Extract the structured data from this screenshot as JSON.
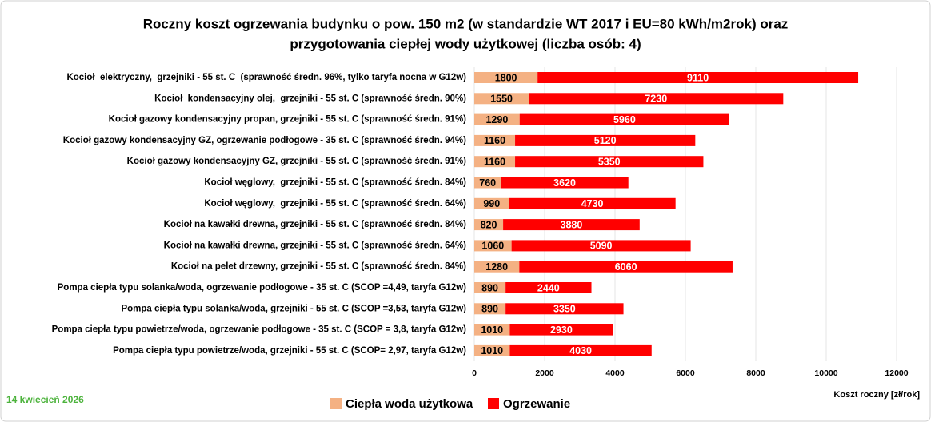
{
  "chart_data": {
    "type": "stacked-barh",
    "title": [
      "Roczny koszt ogrzewania budynku o pow. 150 m2 (w standardzie WT 2017 i EU=80 kWh/m2rok) oraz",
      "przygotowania ciepłej wody użytkowej (liczba osób: 4)"
    ],
    "annotation": "14 kwiecień 2026",
    "xlabel": "Koszt roczny [zł/rok]",
    "categories": [
      "Kocioł  elektryczny,  grzejniki - 55 st. C  (sprawność średn. 96%, tylko taryfa nocna w G12w)",
      "Kocioł  kondensacyjny olej,  grzejniki - 55 st. C (sprawność średn. 90%)",
      "Kocioł gazowy kondensacyjny propan, grzejniki - 55 st. C (sprawność średn. 91%)",
      "Kocioł gazowy kondensacyjny GZ, ogrzewanie podłogowe - 35 st. C (sprawność średn. 94%)",
      "Kocioł gazowy kondensacyjny GZ, grzejniki - 55 st. C (sprawność średn. 91%)",
      "Kocioł węglowy,  grzejniki - 55 st. C (sprawność średn. 84%)",
      "Kocioł węglowy,  grzejniki - 55 st. C (sprawność średn. 64%)",
      "Kocioł na kawałki drewna, grzejniki - 55 st. C (sprawność średn. 84%)",
      "Kocioł na kawałki drewna, grzejniki - 55 st. C (sprawność średn. 64%)",
      "Kocioł na pelet drzewny, grzejniki - 55 st. C (sprawność średn. 84%)",
      "Pompa ciepła typu solanka/woda, ogrzewanie podłogowe - 35 st. C (SCOP =4,49, taryfa G12w)",
      "Pompa ciepła typu solanka/woda, grzejniki - 55 st. C (SCOP =3,53, taryfa G12w)",
      "Pompa ciepła typu powietrze/woda, ogrzewanie podłogowe - 35 st. C (SCOP = 3,8, taryfa G12w)",
      "Pompa ciepła typu powietrze/woda, grzejniki - 55 st. C (SCOP= 2,97, taryfa G12w)"
    ],
    "series": [
      {
        "name": "Ciepła woda użytkowa",
        "color": "#f4b183",
        "label_color": "#000000",
        "values": [
          1800,
          1550,
          1290,
          1160,
          1160,
          760,
          990,
          820,
          1060,
          1280,
          890,
          890,
          1010,
          1010
        ]
      },
      {
        "name": "Ogrzewanie",
        "color": "#ff0000",
        "label_color": "#ffffff",
        "values": [
          9110,
          7230,
          5960,
          5120,
          5350,
          3620,
          4730,
          3880,
          5090,
          6060,
          2440,
          3350,
          2930,
          4030
        ]
      }
    ],
    "xlim": [
      0,
      12000
    ],
    "xticks": [
      0,
      2000,
      4000,
      6000,
      8000,
      10000,
      12000
    ],
    "grid": true
  }
}
